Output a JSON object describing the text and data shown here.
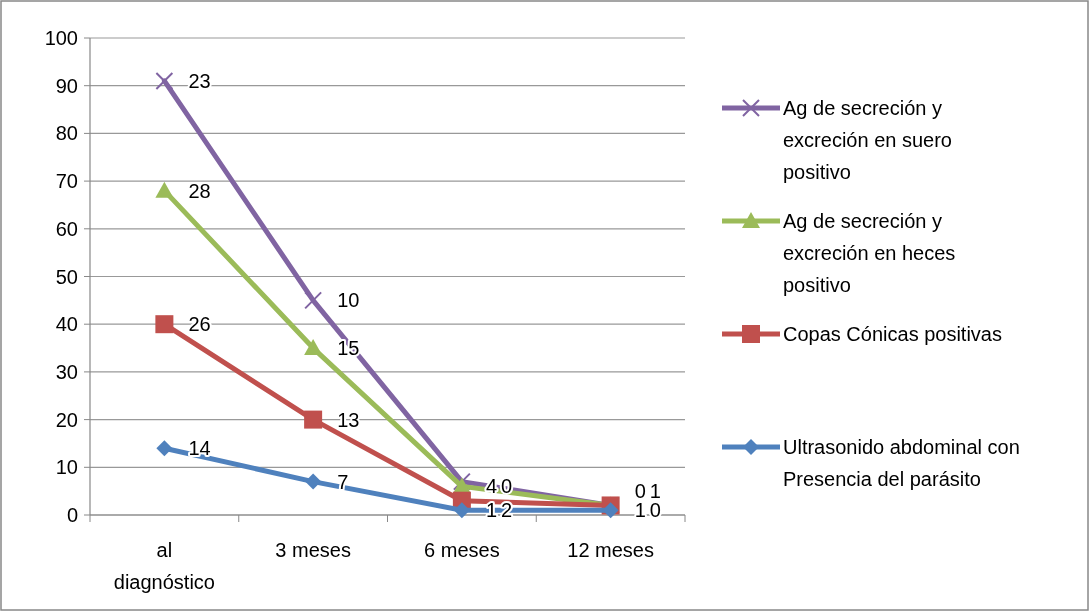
{
  "chart_data": {
    "type": "line",
    "categories": [
      "al diagnóstico",
      "3 meses",
      "6 meses",
      "12 meses"
    ],
    "ylim": [
      0,
      100
    ],
    "yticks": [
      0,
      10,
      20,
      30,
      40,
      50,
      60,
      70,
      80,
      90,
      100
    ],
    "grid": "y",
    "legend": "right",
    "series": [
      {
        "name": "Ag de secreción y excreción en suero positivo",
        "color": "#8064a2",
        "marker": "cross",
        "values": [
          91,
          45,
          7,
          2
        ]
      },
      {
        "name": "Ag de secreción y excreción en heces positivo",
        "color": "#9bbb59",
        "marker": "triangle",
        "values": [
          68,
          35,
          6,
          2
        ]
      },
      {
        "name": "Copas Cónicas positivas",
        "color": "#c0504d",
        "marker": "square",
        "values": [
          40,
          20,
          3,
          2
        ]
      },
      {
        "name": "Ultrasonido abdominal con Presencia del parásito",
        "color": "#4f81bd",
        "marker": "diamond",
        "values": [
          14,
          7,
          1,
          1
        ]
      }
    ],
    "annotations": [
      {
        "text": "23",
        "x": "al diagnóstico",
        "y": 91
      },
      {
        "text": "10",
        "x": "3 meses",
        "y": 45
      },
      {
        "text": "0",
        "x": "6 meses",
        "y": 7
      },
      {
        "text": "0",
        "x": "12 meses",
        "y": 2
      },
      {
        "text": "28",
        "x": "al diagnóstico",
        "y": 68
      },
      {
        "text": "15",
        "x": "3 meses",
        "y": 35
      },
      {
        "text": "4",
        "x": "6 meses",
        "y": 6
      },
      {
        "text": "0",
        "x": "12 meses",
        "y": 2
      },
      {
        "text": "26",
        "x": "al diagnóstico",
        "y": 40
      },
      {
        "text": "13",
        "x": "3 meses",
        "y": 20
      },
      {
        "text": "2",
        "x": "6 meses",
        "y": 3
      },
      {
        "text": "1",
        "x": "12 meses",
        "y": 2
      },
      {
        "text": "14",
        "x": "al diagnóstico",
        "y": 14
      },
      {
        "text": "7",
        "x": "3 meses",
        "y": 7
      },
      {
        "text": "1",
        "x": "6 meses",
        "y": 1
      },
      {
        "text": "1",
        "x": "12 meses",
        "y": 1
      }
    ]
  }
}
